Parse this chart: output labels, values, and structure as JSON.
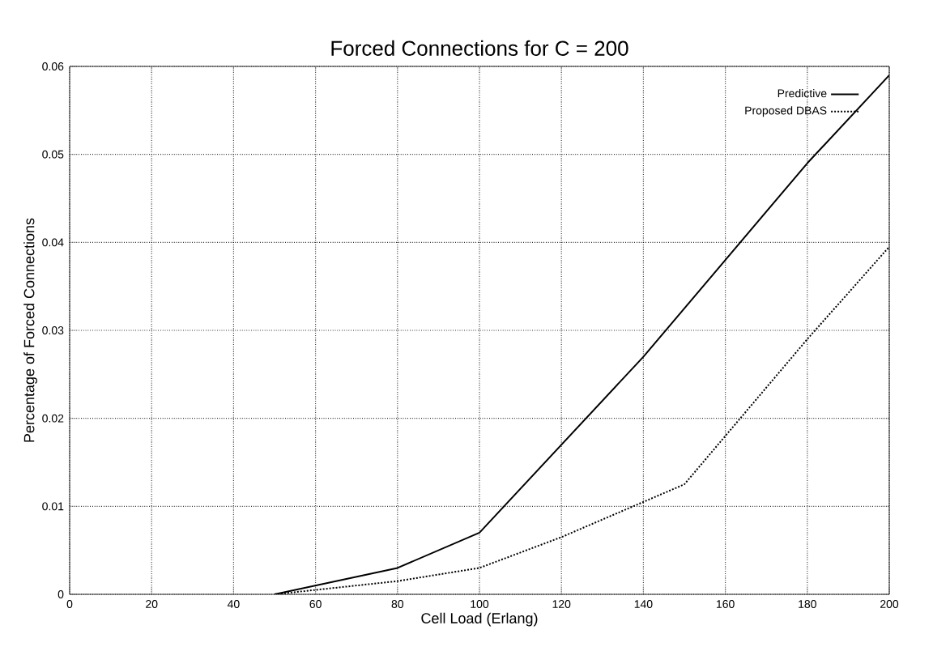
{
  "chart_data": {
    "type": "line",
    "title": "Forced Connections for C = 200",
    "xlabel": "Cell Load (Erlang)",
    "ylabel": "Percentage of Forced Connections",
    "x": [
      50,
      80,
      100,
      120,
      140,
      160,
      180,
      200
    ],
    "series": [
      {
        "name": "Predictive",
        "color": "#000000",
        "line_style": "solid",
        "values": [
          0,
          0.003,
          0.007,
          0.017,
          0.027,
          0.038,
          0.049,
          0.059
        ]
      },
      {
        "name": "Proposed DBAS",
        "color": "#000000",
        "line_style": "dotted",
        "x": [
          50,
          80,
          100,
          120,
          140,
          150,
          160,
          180,
          200
        ],
        "values": [
          0,
          0.0015,
          0.003,
          0.0065,
          0.0105,
          0.0125,
          0.018,
          0.029,
          0.0395
        ]
      }
    ],
    "xlim": [
      0,
      200
    ],
    "ylim": [
      0,
      0.06
    ],
    "xticks": [
      0,
      20,
      40,
      60,
      80,
      100,
      120,
      140,
      160,
      180,
      200
    ],
    "yticks": [
      0,
      0.01,
      0.02,
      0.03,
      0.04,
      0.05,
      0.06
    ],
    "grid": true,
    "legend": "top right",
    "marker": "none"
  }
}
